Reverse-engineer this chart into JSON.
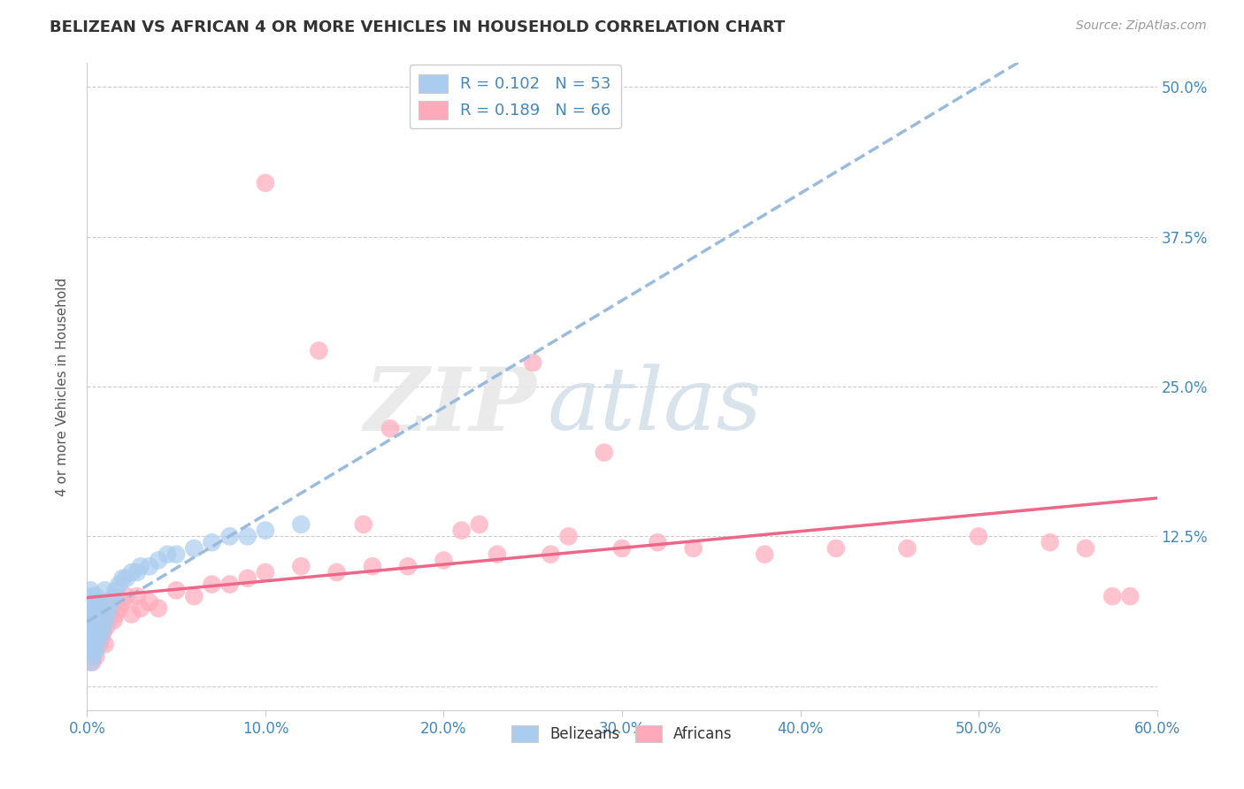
{
  "title": "BELIZEAN VS AFRICAN 4 OR MORE VEHICLES IN HOUSEHOLD CORRELATION CHART",
  "source": "Source: ZipAtlas.com",
  "ylabel": "4 or more Vehicles in Household",
  "xlim": [
    0.0,
    0.6
  ],
  "ylim": [
    -0.02,
    0.52
  ],
  "yticks_right": [
    0.0,
    0.125,
    0.25,
    0.375,
    0.5
  ],
  "ytick_labels_right": [
    "",
    "12.5%",
    "25.0%",
    "37.5%",
    "50.0%"
  ],
  "xticks": [
    0.0,
    0.1,
    0.2,
    0.3,
    0.4,
    0.5,
    0.6
  ],
  "xtick_labels": [
    "0.0%",
    "10.0%",
    "20.0%",
    "30.0%",
    "40.0%",
    "50.0%",
    "60.0%"
  ],
  "blue_color": "#aaccee",
  "pink_color": "#ffaabb",
  "blue_line_color": "#99bbdd",
  "pink_line_color": "#ee6688",
  "title_color": "#333333",
  "axis_color": "#4488bb",
  "bg_color": "#ffffff",
  "grid_color": "#cccccc",
  "belizean_x": [
    0.001,
    0.001,
    0.001,
    0.001,
    0.002,
    0.002,
    0.002,
    0.002,
    0.002,
    0.003,
    0.003,
    0.003,
    0.003,
    0.003,
    0.004,
    0.004,
    0.004,
    0.004,
    0.005,
    0.005,
    0.005,
    0.005,
    0.006,
    0.006,
    0.006,
    0.007,
    0.007,
    0.008,
    0.008,
    0.009,
    0.01,
    0.01,
    0.011,
    0.012,
    0.013,
    0.015,
    0.016,
    0.018,
    0.02,
    0.022,
    0.025,
    0.028,
    0.03,
    0.035,
    0.04,
    0.045,
    0.05,
    0.06,
    0.07,
    0.08,
    0.09,
    0.1,
    0.12
  ],
  "belizean_y": [
    0.03,
    0.05,
    0.06,
    0.07,
    0.02,
    0.04,
    0.055,
    0.065,
    0.08,
    0.025,
    0.04,
    0.055,
    0.065,
    0.075,
    0.03,
    0.045,
    0.06,
    0.07,
    0.03,
    0.045,
    0.06,
    0.075,
    0.04,
    0.055,
    0.07,
    0.04,
    0.06,
    0.045,
    0.065,
    0.05,
    0.055,
    0.08,
    0.06,
    0.065,
    0.07,
    0.075,
    0.08,
    0.085,
    0.09,
    0.09,
    0.095,
    0.095,
    0.1,
    0.1,
    0.105,
    0.11,
    0.11,
    0.115,
    0.12,
    0.125,
    0.125,
    0.13,
    0.135
  ],
  "african_x": [
    0.001,
    0.002,
    0.002,
    0.003,
    0.003,
    0.003,
    0.004,
    0.004,
    0.005,
    0.005,
    0.005,
    0.006,
    0.006,
    0.007,
    0.007,
    0.008,
    0.008,
    0.009,
    0.01,
    0.01,
    0.011,
    0.012,
    0.013,
    0.015,
    0.016,
    0.018,
    0.02,
    0.022,
    0.025,
    0.028,
    0.03,
    0.035,
    0.04,
    0.05,
    0.06,
    0.07,
    0.08,
    0.09,
    0.1,
    0.12,
    0.14,
    0.16,
    0.18,
    0.2,
    0.23,
    0.26,
    0.3,
    0.34,
    0.38,
    0.42,
    0.46,
    0.5,
    0.54,
    0.56,
    0.575,
    0.585,
    0.1,
    0.13,
    0.17,
    0.25,
    0.29,
    0.32,
    0.27,
    0.22,
    0.155,
    0.21
  ],
  "african_y": [
    0.05,
    0.03,
    0.06,
    0.02,
    0.045,
    0.065,
    0.035,
    0.055,
    0.025,
    0.05,
    0.07,
    0.04,
    0.06,
    0.035,
    0.055,
    0.04,
    0.065,
    0.045,
    0.035,
    0.06,
    0.05,
    0.06,
    0.065,
    0.055,
    0.06,
    0.065,
    0.07,
    0.075,
    0.06,
    0.075,
    0.065,
    0.07,
    0.065,
    0.08,
    0.075,
    0.085,
    0.085,
    0.09,
    0.095,
    0.1,
    0.095,
    0.1,
    0.1,
    0.105,
    0.11,
    0.11,
    0.115,
    0.115,
    0.11,
    0.115,
    0.115,
    0.125,
    0.12,
    0.115,
    0.075,
    0.075,
    0.42,
    0.28,
    0.215,
    0.27,
    0.195,
    0.12,
    0.125,
    0.135,
    0.135,
    0.13
  ]
}
